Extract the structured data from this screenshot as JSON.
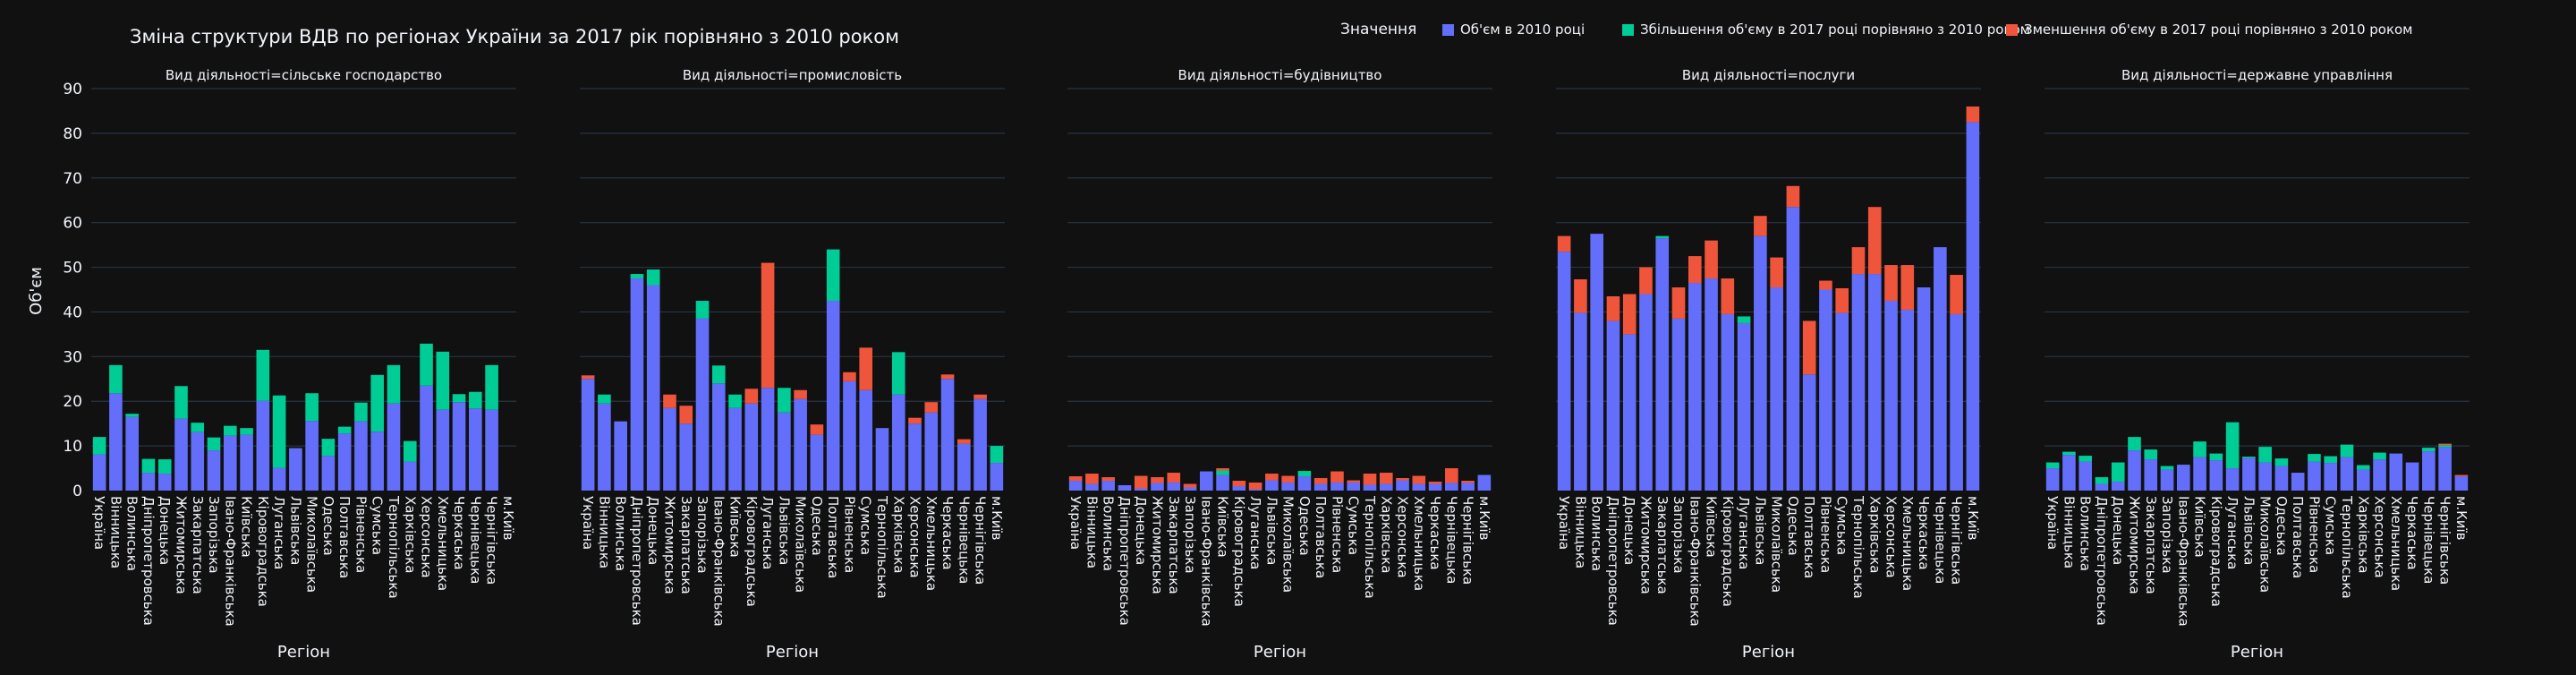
{
  "title": "Зміна структури ВДВ по регіонах України за 2017 рік порівняно з 2010 роком",
  "legend": {
    "title": "Значення",
    "items": [
      {
        "label": "Об'єм в 2010 році",
        "color": "#636efa"
      },
      {
        "label": "Збільшення об'єму в 2017 році порівняно з 2010 роком",
        "color": "#00cc96"
      },
      {
        "label": "Зменшення об'єму в 2017 році порівняно з 2010 роком",
        "color": "#ef553b"
      }
    ]
  },
  "chart_data": {
    "type": "bar",
    "barmode": "stack",
    "ylabel": "Об'єм",
    "xlabel": "Регіон",
    "ylim": [
      0,
      90
    ],
    "yticks": [
      0,
      10,
      20,
      30,
      40,
      50,
      60,
      70,
      80,
      90
    ],
    "grid": true,
    "legend_position": "top-right",
    "colors": {
      "base": "#636efa",
      "increase": "#00cc96",
      "decrease": "#ef553b"
    },
    "categories": [
      "Україна",
      "Вінницька",
      "Волинська",
      "Дніпропетровська",
      "Донецька",
      "Житомирська",
      "Закарпатська",
      "Запорізька",
      "Івано-Франківська",
      "Київська",
      "Кіровоградська",
      "Луганська",
      "Львівська",
      "Миколаївська",
      "Одеська",
      "Полтавська",
      "Рівненська",
      "Сумська",
      "Тернопільська",
      "Харківська",
      "Херсонська",
      "Хмельницька",
      "Черкаська",
      "Чернівецька",
      "Чернігівська",
      "м.Київ"
    ],
    "facets": [
      {
        "title": "Вид діяльності=сільське господарство",
        "base": [
          8.1,
          21.8,
          16.5,
          4,
          3.8,
          16.1,
          13.1,
          9,
          12.3,
          12.5,
          20.1,
          5.1,
          9.5,
          15.6,
          7.8,
          12.8,
          15.5,
          13.2,
          19.5,
          6.5,
          23.5,
          18.1,
          19.8,
          18.4,
          18.1,
          0
        ],
        "increase": [
          3.9,
          6.3,
          0.7,
          3.1,
          3.2,
          7.3,
          2.1,
          2.9,
          2.2,
          1.5,
          11.4,
          16.2,
          0,
          6.2,
          3.8,
          1.5,
          4.2,
          12.7,
          8.6,
          4.6,
          9.4,
          13,
          1.8,
          3.7,
          10,
          0
        ],
        "decrease": [
          0,
          0,
          0,
          0,
          0,
          0,
          0,
          0,
          0,
          0,
          0,
          0,
          0,
          0,
          0,
          0,
          0,
          0,
          0,
          0,
          0,
          0,
          0,
          0,
          0,
          0
        ]
      },
      {
        "title": "Вид діяльності=промисловість",
        "base": [
          25,
          19.5,
          15.5,
          47.5,
          46,
          18.5,
          15,
          38.5,
          24,
          18.5,
          19.5,
          23,
          17.5,
          20.5,
          12.5,
          42.5,
          24.5,
          22.5,
          14,
          21.5,
          15,
          17.5,
          25,
          10.5,
          20.5,
          6.2
        ],
        "increase": [
          0,
          2,
          0,
          1,
          3.5,
          0,
          0,
          4,
          4,
          3,
          0,
          0,
          5.5,
          0,
          0,
          11.5,
          0,
          0,
          0,
          9.5,
          0,
          0,
          0,
          0,
          0,
          3.8
        ],
        "decrease": [
          0.8,
          0,
          0,
          0,
          0,
          3,
          4,
          0,
          0,
          0,
          3.3,
          28,
          0,
          2,
          2.3,
          0,
          2,
          9.5,
          0,
          0,
          1.3,
          2.3,
          1,
          1,
          1,
          0
        ]
      },
      {
        "title": "Вид діяльності=будівництво",
        "base": [
          2.2,
          1.5,
          2.2,
          1.2,
          0.5,
          1.7,
          1.8,
          0.7,
          4.3,
          3.5,
          1,
          0.3,
          2.3,
          1.8,
          3.2,
          1.5,
          1.8,
          1.8,
          1.3,
          1.5,
          2.3,
          1.5,
          1.5,
          1.7,
          1.7,
          3.5
        ],
        "increase": [
          0,
          0,
          0,
          0,
          0,
          0,
          0,
          0,
          0,
          1,
          0,
          0,
          0,
          0,
          1.2,
          0,
          0,
          0,
          0,
          0,
          0,
          0,
          0,
          0,
          0,
          0
        ],
        "decrease": [
          1,
          2.3,
          0.8,
          0,
          2.8,
          1.3,
          2.2,
          0.8,
          0,
          0.5,
          1.2,
          1.5,
          1.5,
          1.5,
          0,
          1.3,
          2.5,
          0.5,
          2.5,
          2.5,
          0.5,
          1.8,
          0.5,
          3.3,
          0.5,
          0
        ]
      },
      {
        "title": "Вид діяльності=послуги",
        "base": [
          53.5,
          39.8,
          57.5,
          38,
          35,
          44,
          56.5,
          38.5,
          46.5,
          47.5,
          39.5,
          37.5,
          57,
          45.5,
          63.5,
          26,
          45,
          39.8,
          48.5,
          48.5,
          42.5,
          40.5,
          45.5,
          54.5,
          39.5,
          82.5
        ],
        "increase": [
          0,
          0,
          0,
          0,
          0,
          0,
          0.5,
          0,
          0,
          0,
          0,
          1.5,
          0,
          0,
          0,
          0,
          0,
          0,
          0,
          0,
          0,
          0,
          0,
          0,
          0,
          0
        ],
        "decrease": [
          3.5,
          7.5,
          0,
          5.5,
          9,
          6,
          0,
          7,
          6,
          8.5,
          8,
          0,
          4.5,
          6.7,
          4.7,
          12,
          2,
          5.5,
          6,
          15,
          8,
          10,
          0,
          0,
          8.8,
          3.5
        ]
      },
      {
        "title": "Вид діяльності=державне управління",
        "base": [
          5,
          8,
          6.5,
          1.5,
          2,
          9,
          7,
          4.7,
          5.8,
          7.5,
          6.8,
          5,
          7.3,
          6.3,
          5.5,
          4,
          6.5,
          6.2,
          7.5,
          4.7,
          7,
          8.3,
          6.3,
          8.8,
          9.7,
          3.2
        ],
        "increase": [
          1.3,
          0.7,
          1.3,
          1.5,
          4.3,
          3,
          2.2,
          0.8,
          0,
          3.5,
          1.5,
          10.3,
          0.3,
          3.5,
          1.7,
          0,
          1.7,
          1.5,
          2.8,
          1,
          1.5,
          0,
          0,
          0.8,
          0.5,
          0
        ],
        "decrease": [
          0,
          0,
          0,
          0,
          0,
          0,
          0,
          0,
          0,
          0,
          0,
          0,
          0,
          0,
          0,
          0,
          0,
          0,
          0,
          0,
          0,
          0,
          0,
          0,
          0.3,
          0.3
        ]
      }
    ]
  }
}
